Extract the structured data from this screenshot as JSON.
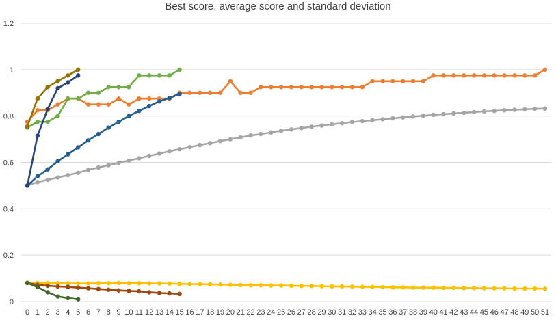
{
  "chart_data": {
    "type": "line",
    "title": "Best score, average score and standard deviation",
    "xlabel": "",
    "ylabel": "",
    "ylim": [
      0,
      1.2
    ],
    "yticks": [
      0,
      0.2,
      0.4,
      0.6,
      0.8,
      1,
      1.2
    ],
    "ytick_labels": [
      "0",
      "0.2",
      "0.4",
      "0.6",
      "0.8",
      "1",
      "1.2"
    ],
    "xlim": [
      0,
      51
    ],
    "xticks": [
      0,
      1,
      2,
      3,
      4,
      5,
      6,
      7,
      8,
      9,
      10,
      11,
      12,
      13,
      14,
      15,
      16,
      17,
      18,
      19,
      20,
      21,
      22,
      23,
      24,
      25,
      26,
      27,
      28,
      29,
      30,
      31,
      32,
      33,
      34,
      35,
      36,
      37,
      38,
      39,
      40,
      41,
      42,
      43,
      44,
      45,
      46,
      47,
      48,
      49,
      50,
      51
    ],
    "grid": true,
    "legend": "none",
    "series": [
      {
        "color": "#ED7D31",
        "x": [
          0,
          1,
          2,
          3,
          4,
          5,
          6,
          7,
          8,
          9,
          10,
          11,
          12,
          13,
          14,
          15,
          16,
          17,
          18,
          19,
          20,
          21,
          22,
          23,
          24,
          25,
          26,
          27,
          28,
          29,
          30,
          31,
          32,
          33,
          34,
          35,
          36,
          37,
          38,
          39,
          40,
          41,
          42,
          43,
          44,
          45,
          46,
          47,
          48,
          49,
          50,
          51
        ],
        "values": [
          0.775,
          0.825,
          0.825,
          0.85,
          0.875,
          0.875,
          0.85,
          0.85,
          0.85,
          0.875,
          0.85,
          0.875,
          0.875,
          0.875,
          0.875,
          0.9,
          0.9,
          0.9,
          0.9,
          0.9,
          0.95,
          0.9,
          0.9,
          0.925,
          0.925,
          0.925,
          0.925,
          0.925,
          0.925,
          0.925,
          0.925,
          0.925,
          0.925,
          0.925,
          0.95,
          0.95,
          0.95,
          0.95,
          0.95,
          0.95,
          0.975,
          0.975,
          0.975,
          0.975,
          0.975,
          0.975,
          0.975,
          0.975,
          0.975,
          0.975,
          0.975,
          1.0
        ]
      },
      {
        "color": "#A5A5A5",
        "x": [
          0,
          1,
          2,
          3,
          4,
          5,
          6,
          7,
          8,
          9,
          10,
          11,
          12,
          13,
          14,
          15,
          16,
          17,
          18,
          19,
          20,
          21,
          22,
          23,
          24,
          25,
          26,
          27,
          28,
          29,
          30,
          31,
          32,
          33,
          34,
          35,
          36,
          37,
          38,
          39,
          40,
          41,
          42,
          43,
          44,
          45,
          46,
          47,
          48,
          49,
          50,
          51
        ],
        "values": [
          0.5,
          0.515,
          0.525,
          0.535,
          0.545,
          0.555,
          0.568,
          0.578,
          0.588,
          0.598,
          0.608,
          0.618,
          0.628,
          0.638,
          0.648,
          0.657,
          0.666,
          0.675,
          0.683,
          0.692,
          0.7,
          0.708,
          0.716,
          0.722,
          0.729,
          0.736,
          0.742,
          0.748,
          0.754,
          0.759,
          0.764,
          0.769,
          0.774,
          0.778,
          0.782,
          0.786,
          0.79,
          0.794,
          0.798,
          0.801,
          0.805,
          0.808,
          0.811,
          0.814,
          0.817,
          0.82,
          0.822,
          0.825,
          0.827,
          0.829,
          0.831,
          0.832
        ]
      },
      {
        "color": "#FFC000",
        "x": [
          0,
          1,
          2,
          3,
          4,
          5,
          6,
          7,
          8,
          9,
          10,
          11,
          12,
          13,
          14,
          15,
          16,
          17,
          18,
          19,
          20,
          21,
          22,
          23,
          24,
          25,
          26,
          27,
          28,
          29,
          30,
          31,
          32,
          33,
          34,
          35,
          36,
          37,
          38,
          39,
          40,
          41,
          42,
          43,
          44,
          45,
          46,
          47,
          48,
          49,
          50,
          51
        ],
        "values": [
          0.08,
          0.08,
          0.08,
          0.079,
          0.078,
          0.078,
          0.078,
          0.079,
          0.079,
          0.08,
          0.079,
          0.079,
          0.078,
          0.078,
          0.077,
          0.076,
          0.075,
          0.075,
          0.074,
          0.073,
          0.072,
          0.071,
          0.07,
          0.07,
          0.069,
          0.069,
          0.068,
          0.067,
          0.067,
          0.066,
          0.065,
          0.065,
          0.064,
          0.063,
          0.063,
          0.062,
          0.061,
          0.061,
          0.06,
          0.06,
          0.06,
          0.059,
          0.059,
          0.058,
          0.058,
          0.057,
          0.057,
          0.057,
          0.056,
          0.056,
          0.056,
          0.055
        ]
      },
      {
        "color": "#70AD47",
        "x": [
          0,
          1,
          2,
          3,
          4,
          5,
          6,
          7,
          8,
          9,
          10,
          11,
          12,
          13,
          14,
          15
        ],
        "values": [
          0.75,
          0.775,
          0.775,
          0.8,
          0.875,
          0.875,
          0.9,
          0.9,
          0.925,
          0.925,
          0.925,
          0.975,
          0.975,
          0.975,
          0.975,
          1.0
        ]
      },
      {
        "color": "#255E91",
        "x": [
          0,
          1,
          2,
          3,
          4,
          5,
          6,
          7,
          8,
          9,
          10,
          11,
          12,
          13,
          14,
          15
        ],
        "values": [
          0.5,
          0.54,
          0.57,
          0.605,
          0.635,
          0.665,
          0.695,
          0.722,
          0.75,
          0.775,
          0.8,
          0.822,
          0.843,
          0.863,
          0.878,
          0.895
        ]
      },
      {
        "color": "#9E480E",
        "x": [
          0,
          1,
          2,
          3,
          4,
          5,
          6,
          7,
          8,
          9,
          10,
          11,
          12,
          13,
          14,
          15
        ],
        "values": [
          0.08,
          0.072,
          0.068,
          0.065,
          0.063,
          0.06,
          0.057,
          0.054,
          0.051,
          0.048,
          0.046,
          0.044,
          0.04,
          0.037,
          0.035,
          0.033
        ]
      },
      {
        "color": "#997300",
        "x": [
          0,
          1,
          2,
          3,
          4,
          5
        ],
        "values": [
          0.755,
          0.875,
          0.925,
          0.95,
          0.975,
          1.0
        ]
      },
      {
        "color": "#264478",
        "x": [
          0,
          1,
          2,
          3,
          4,
          5
        ],
        "values": [
          0.5,
          0.715,
          0.83,
          0.92,
          0.945,
          0.975
        ]
      },
      {
        "color": "#43682B",
        "x": [
          0,
          1,
          2,
          3,
          4,
          5
        ],
        "values": [
          0.08,
          0.062,
          0.04,
          0.022,
          0.015,
          0.01
        ]
      }
    ]
  }
}
